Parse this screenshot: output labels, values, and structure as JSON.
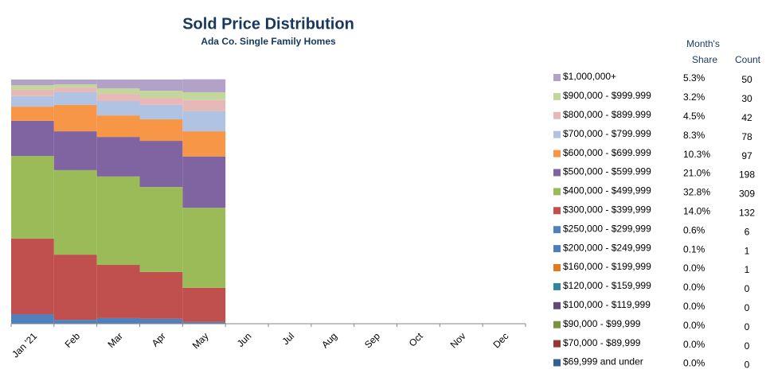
{
  "chart_data": {
    "type": "stacked_bar",
    "title": "Sold Price Distribution",
    "subtitle": "Ada Co. Single Family Homes",
    "categories": [
      "Jan '21",
      "Feb",
      "Mar",
      "Apr",
      "May",
      "Jun",
      "Jul",
      "Aug",
      "Sep",
      "Oct",
      "Nov",
      "Dec"
    ],
    "ylim": [
      0,
      100
    ],
    "table_headers": {
      "share_top": "Month's",
      "share": "Share",
      "count": "Count"
    },
    "series": [
      {
        "name": "$1,000,000+",
        "color": "#b3a2c7",
        "values": [
          2.3,
          2.0,
          3.6,
          4.6,
          5.3,
          null,
          null,
          null,
          null,
          null,
          null,
          null
        ],
        "share_label": "5.3%",
        "count": 50
      },
      {
        "name": "$900,000 - $999.999",
        "color": "#c3d69b",
        "values": [
          1.9,
          1.3,
          2.3,
          2.9,
          3.2,
          null,
          null,
          null,
          null,
          null,
          null,
          null
        ],
        "share_label": "3.2%",
        "count": 30
      },
      {
        "name": "$800,000 - $899.999",
        "color": "#e6b9b8",
        "values": [
          2.6,
          1.9,
          2.9,
          2.9,
          4.5,
          null,
          null,
          null,
          null,
          null,
          null,
          null
        ],
        "share_label": "4.5%",
        "count": 42
      },
      {
        "name": "$700,000 - $799.999",
        "color": "#b0c3e3",
        "values": [
          4.3,
          5.2,
          5.9,
          5.9,
          8.3,
          null,
          null,
          null,
          null,
          null,
          null,
          null
        ],
        "share_label": "8.3%",
        "count": 78
      },
      {
        "name": "$600,000 - $699.999",
        "color": "#f79646",
        "values": [
          5.8,
          10.8,
          8.8,
          8.8,
          10.3,
          null,
          null,
          null,
          null,
          null,
          null,
          null
        ],
        "share_label": "10.3%",
        "count": 97
      },
      {
        "name": "$500,000 - $599.999",
        "color": "#8064a2",
        "values": [
          14.4,
          15.9,
          16.2,
          18.9,
          21.0,
          null,
          null,
          null,
          null,
          null,
          null,
          null
        ],
        "share_label": "21.0%",
        "count": 198
      },
      {
        "name": "$400,000 - $499,999",
        "color": "#9bbb59",
        "values": [
          33.8,
          34.6,
          36.2,
          34.8,
          32.8,
          null,
          null,
          null,
          null,
          null,
          null,
          null
        ],
        "share_label": "32.8%",
        "count": 309
      },
      {
        "name": "$300,000 - $399,999",
        "color": "#c0504d",
        "values": [
          31.0,
          26.7,
          21.8,
          19.2,
          14.0,
          null,
          null,
          null,
          null,
          null,
          null,
          null
        ],
        "share_label": "14.0%",
        "count": 132
      },
      {
        "name": "$250,000 - $299,999",
        "color": "#4f81bd",
        "values": [
          3.9,
          1.6,
          2.3,
          2.0,
          0.6,
          null,
          null,
          null,
          null,
          null,
          null,
          null
        ],
        "share_label": "0.6%",
        "count": 6
      },
      {
        "name": "$200,000 - $249,999",
        "color": "#4a7ebb",
        "values": [
          0,
          0,
          0,
          0,
          0.1,
          null,
          null,
          null,
          null,
          null,
          null,
          null
        ],
        "share_label": "0.1%",
        "count": 1
      },
      {
        "name": "$160,000 - $199,999",
        "color": "#e3791f",
        "values": [
          0,
          0,
          0,
          0,
          0,
          null,
          null,
          null,
          null,
          null,
          null,
          null
        ],
        "share_label": "0.0%",
        "count": 1
      },
      {
        "name": "$120,000 - $159,999",
        "color": "#31859c",
        "values": [
          0,
          0,
          0,
          0,
          0,
          null,
          null,
          null,
          null,
          null,
          null,
          null
        ],
        "share_label": "0.0%",
        "count": 0
      },
      {
        "name": "$100,000 - $119,999",
        "color": "#604a7b",
        "values": [
          0,
          0,
          0,
          0,
          0,
          null,
          null,
          null,
          null,
          null,
          null,
          null
        ],
        "share_label": "0.0%",
        "count": 0
      },
      {
        "name": "$90,000 - $99,999",
        "color": "#77933c",
        "values": [
          0,
          0,
          0,
          0,
          0,
          null,
          null,
          null,
          null,
          null,
          null,
          null
        ],
        "share_label": "0.0%",
        "count": 0
      },
      {
        "name": "$70,000 - $89,999",
        "color": "#953735",
        "values": [
          0,
          0,
          0,
          0,
          0,
          null,
          null,
          null,
          null,
          null,
          null,
          null
        ],
        "share_label": "0.0%",
        "count": 0
      },
      {
        "name": "$69,999  and under",
        "color": "#376092",
        "values": [
          0,
          0,
          0,
          0,
          0,
          null,
          null,
          null,
          null,
          null,
          null,
          null
        ],
        "share_label": "0.0%",
        "count": 0
      }
    ]
  }
}
